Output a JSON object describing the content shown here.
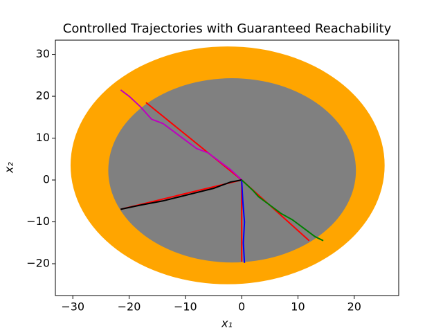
{
  "chart_data": {
    "type": "line",
    "title": "Controlled Trajectories with Guaranteed Reachability",
    "x_label": "x₁",
    "y_label": "x₂",
    "xlim": [
      -33.1,
      27.9
    ],
    "ylim": [
      -27.6,
      33.4
    ],
    "xticks": [
      {
        "value": -30,
        "label": "−30"
      },
      {
        "value": -20,
        "label": "−20"
      },
      {
        "value": -10,
        "label": "−10"
      },
      0,
      10,
      20
    ],
    "yticks": [
      {
        "value": -20,
        "label": "−20"
      },
      {
        "value": -10,
        "label": "−10"
      },
      0,
      10,
      20,
      30
    ],
    "regions": [
      {
        "center": [
          -2.5,
          3.5
        ],
        "radii": [
          27.9,
          28.4
        ],
        "color": "#ffa500"
      },
      {
        "center": [
          -1.7,
          2.3
        ],
        "radii": [
          22.0,
          22.0
        ],
        "color": "#808080"
      }
    ],
    "series": [
      {
        "color": "#ff0000",
        "x": [
          0,
          -17
        ],
        "y": [
          0,
          18.5
        ]
      },
      {
        "color": "#ff0000",
        "x": [
          0,
          -21.5
        ],
        "y": [
          0,
          -7
        ]
      },
      {
        "color": "#ff0000",
        "x": [
          0,
          0
        ],
        "y": [
          0,
          -19.5
        ]
      },
      {
        "color": "#ff0000",
        "x": [
          0,
          12
        ],
        "y": [
          0,
          -14.5
        ]
      },
      {
        "color": "#bf00bf",
        "x": [
          0,
          -2,
          -4,
          -6,
          -8,
          -10,
          -12,
          -14,
          -16,
          -18,
          -20,
          -21.5
        ],
        "y": [
          0,
          2.5,
          4.5,
          6.5,
          7.5,
          9.5,
          11.5,
          13.5,
          14.5,
          17.5,
          20,
          21.5
        ]
      },
      {
        "color": "#000000",
        "x": [
          0,
          -2,
          -5,
          -8,
          -11,
          -14,
          -18,
          -21.5
        ],
        "y": [
          0,
          -0.5,
          -2,
          -3,
          -4,
          -5,
          -6,
          -7
        ]
      },
      {
        "color": "#0000ff",
        "x": [
          0,
          0.2,
          0.5,
          0.3,
          0.5
        ],
        "y": [
          0,
          -5,
          -10,
          -15,
          -19.8
        ]
      },
      {
        "color": "#008000",
        "x": [
          0,
          2,
          3,
          5,
          7,
          9,
          11,
          13,
          14.5
        ],
        "y": [
          0,
          -2.5,
          -4,
          -6,
          -8,
          -9.5,
          -11.5,
          -13.5,
          -14.5
        ]
      }
    ]
  }
}
